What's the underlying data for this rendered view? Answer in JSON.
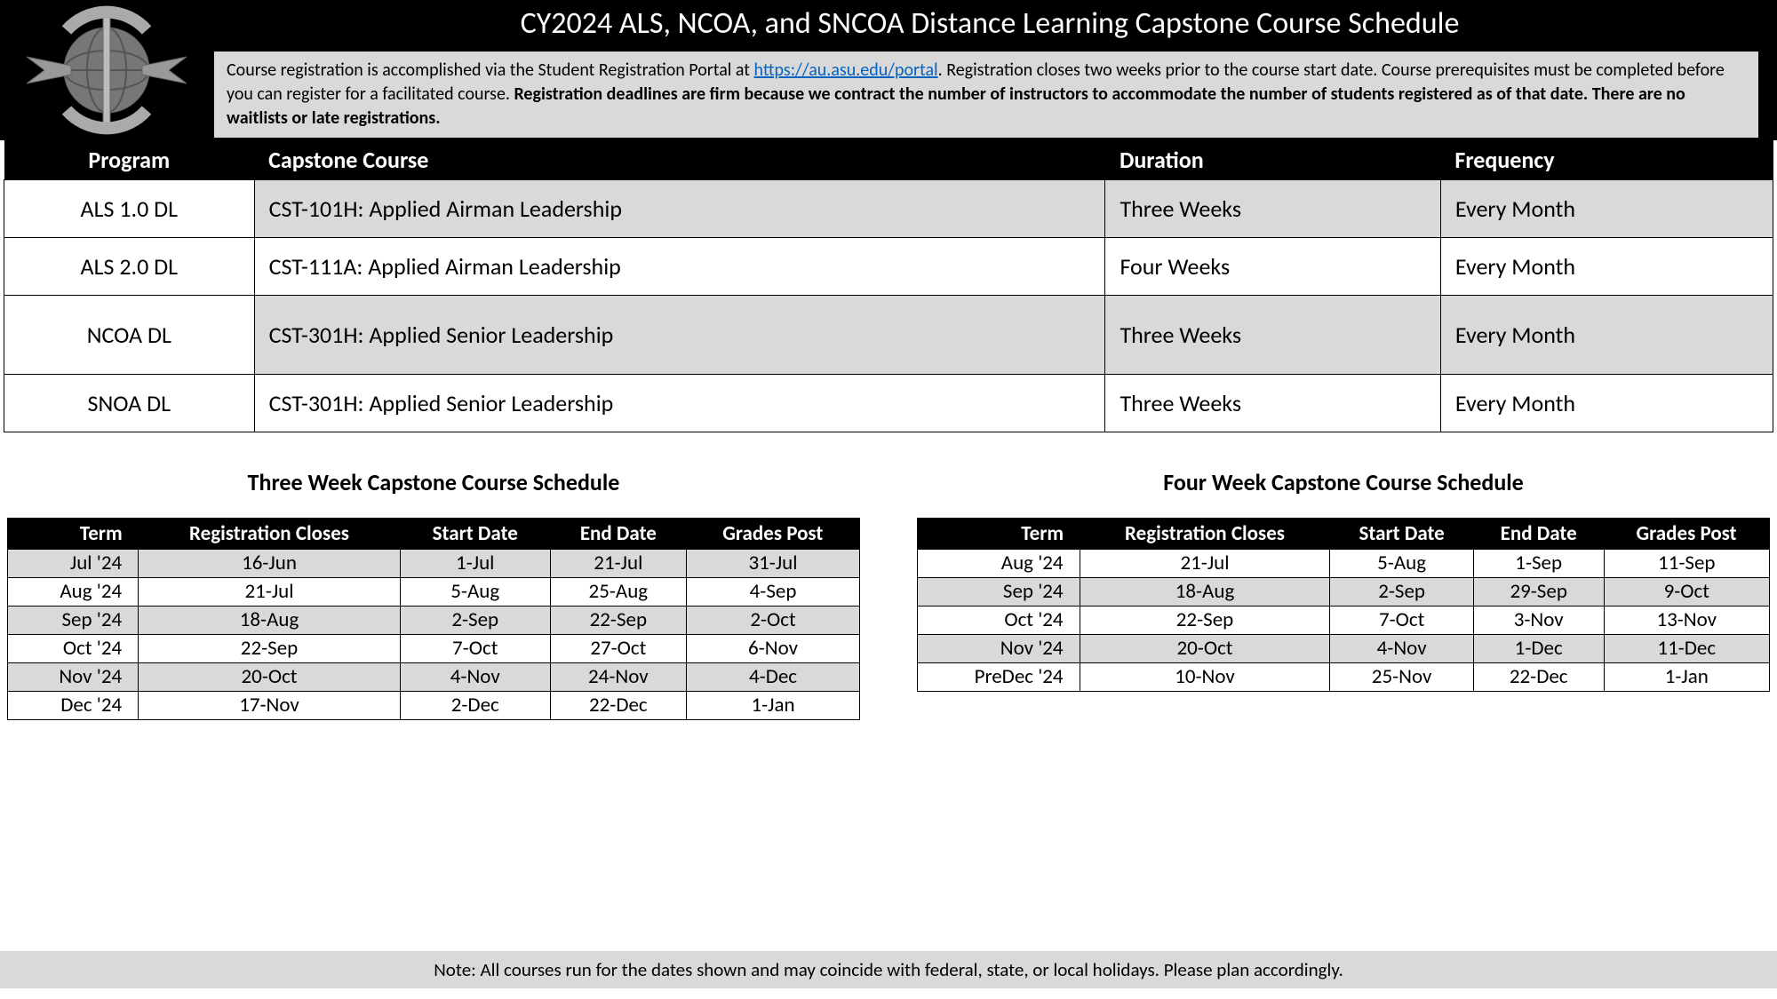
{
  "header": {
    "title": "CY2024 ALS, NCOA, and SNCOA Distance Learning Capstone Course Schedule",
    "info_text_1": "Course registration is accomplished via the Student Registration Portal at ",
    "info_link": "https://au.asu.edu/portal",
    "info_text_2": ". Registration closes two weeks prior to the course start date. Course prerequisites must be completed before you can register for a facilitated course. ",
    "info_bold": "Registration deadlines are firm because we contract the number of instructors to accommodate the number of students registered as of that date. There are no waitlists or late registrations."
  },
  "program_table": {
    "columns": [
      "Program",
      "Capstone Course",
      "Duration",
      "Frequency"
    ],
    "rows": [
      {
        "cells": [
          "ALS 1.0 DL",
          "CST-101H: Applied Airman Leadership",
          "Three Weeks",
          "Every Month"
        ],
        "shaded": true
      },
      {
        "cells": [
          "ALS 2.0 DL",
          "CST-111A: Applied Airman Leadership",
          "Four Weeks",
          "Every Month"
        ],
        "shaded": false
      },
      {
        "cells": [
          "NCOA DL",
          "CST-301H: Applied Senior Leadership",
          "Three Weeks",
          "Every Month"
        ],
        "shaded": true,
        "tall": true
      },
      {
        "cells": [
          "SNOA DL",
          "CST-301H: Applied Senior Leadership",
          "Three Weeks",
          "Every Month"
        ],
        "shaded": false
      }
    ]
  },
  "three_week": {
    "title": "Three Week Capstone Course Schedule",
    "columns": [
      "Term",
      "Registration Closes",
      "Start Date",
      "End Date",
      "Grades Post"
    ],
    "rows": [
      {
        "cells": [
          "Jul '24",
          "16-Jun",
          "1-Jul",
          "21-Jul",
          "31-Jul"
        ],
        "shaded": true
      },
      {
        "cells": [
          "Aug '24",
          "21-Jul",
          "5-Aug",
          "25-Aug",
          "4-Sep"
        ],
        "shaded": false
      },
      {
        "cells": [
          "Sep '24",
          "18-Aug",
          "2-Sep",
          "22-Sep",
          "2-Oct"
        ],
        "shaded": true
      },
      {
        "cells": [
          "Oct '24",
          "22-Sep",
          "7-Oct",
          "27-Oct",
          "6-Nov"
        ],
        "shaded": false
      },
      {
        "cells": [
          "Nov '24",
          "20-Oct",
          "4-Nov",
          "24-Nov",
          "4-Dec"
        ],
        "shaded": true
      },
      {
        "cells": [
          "Dec '24",
          "17-Nov",
          "2-Dec",
          "22-Dec",
          "1-Jan"
        ],
        "shaded": false
      }
    ]
  },
  "four_week": {
    "title": "Four Week Capstone Course Schedule",
    "columns": [
      "Term",
      "Registration Closes",
      "Start Date",
      "End Date",
      "Grades Post"
    ],
    "rows": [
      {
        "cells": [
          "Aug '24",
          "21-Jul",
          "5-Aug",
          "1-Sep",
          "11-Sep"
        ],
        "shaded": false
      },
      {
        "cells": [
          "Sep '24",
          "18-Aug",
          "2-Sep",
          "29-Sep",
          "9-Oct"
        ],
        "shaded": true
      },
      {
        "cells": [
          "Oct '24",
          "22-Sep",
          "7-Oct",
          "3-Nov",
          "13-Nov"
        ],
        "shaded": false
      },
      {
        "cells": [
          "Nov '24",
          "20-Oct",
          "4-Nov",
          "1-Dec",
          "11-Dec"
        ],
        "shaded": true
      },
      {
        "cells": [
          "PreDec '24",
          "10-Nov",
          "25-Nov",
          "22-Dec",
          "1-Jan"
        ],
        "shaded": false
      }
    ]
  },
  "footer": {
    "note": "Note: All courses run for the dates shown and may coincide with federal, state, or local holidays. Please plan accordingly."
  },
  "colors": {
    "header_bg": "#000000",
    "header_text": "#ffffff",
    "shaded_bg": "#d9d9d9",
    "link": "#0563c1",
    "border": "#000000"
  }
}
